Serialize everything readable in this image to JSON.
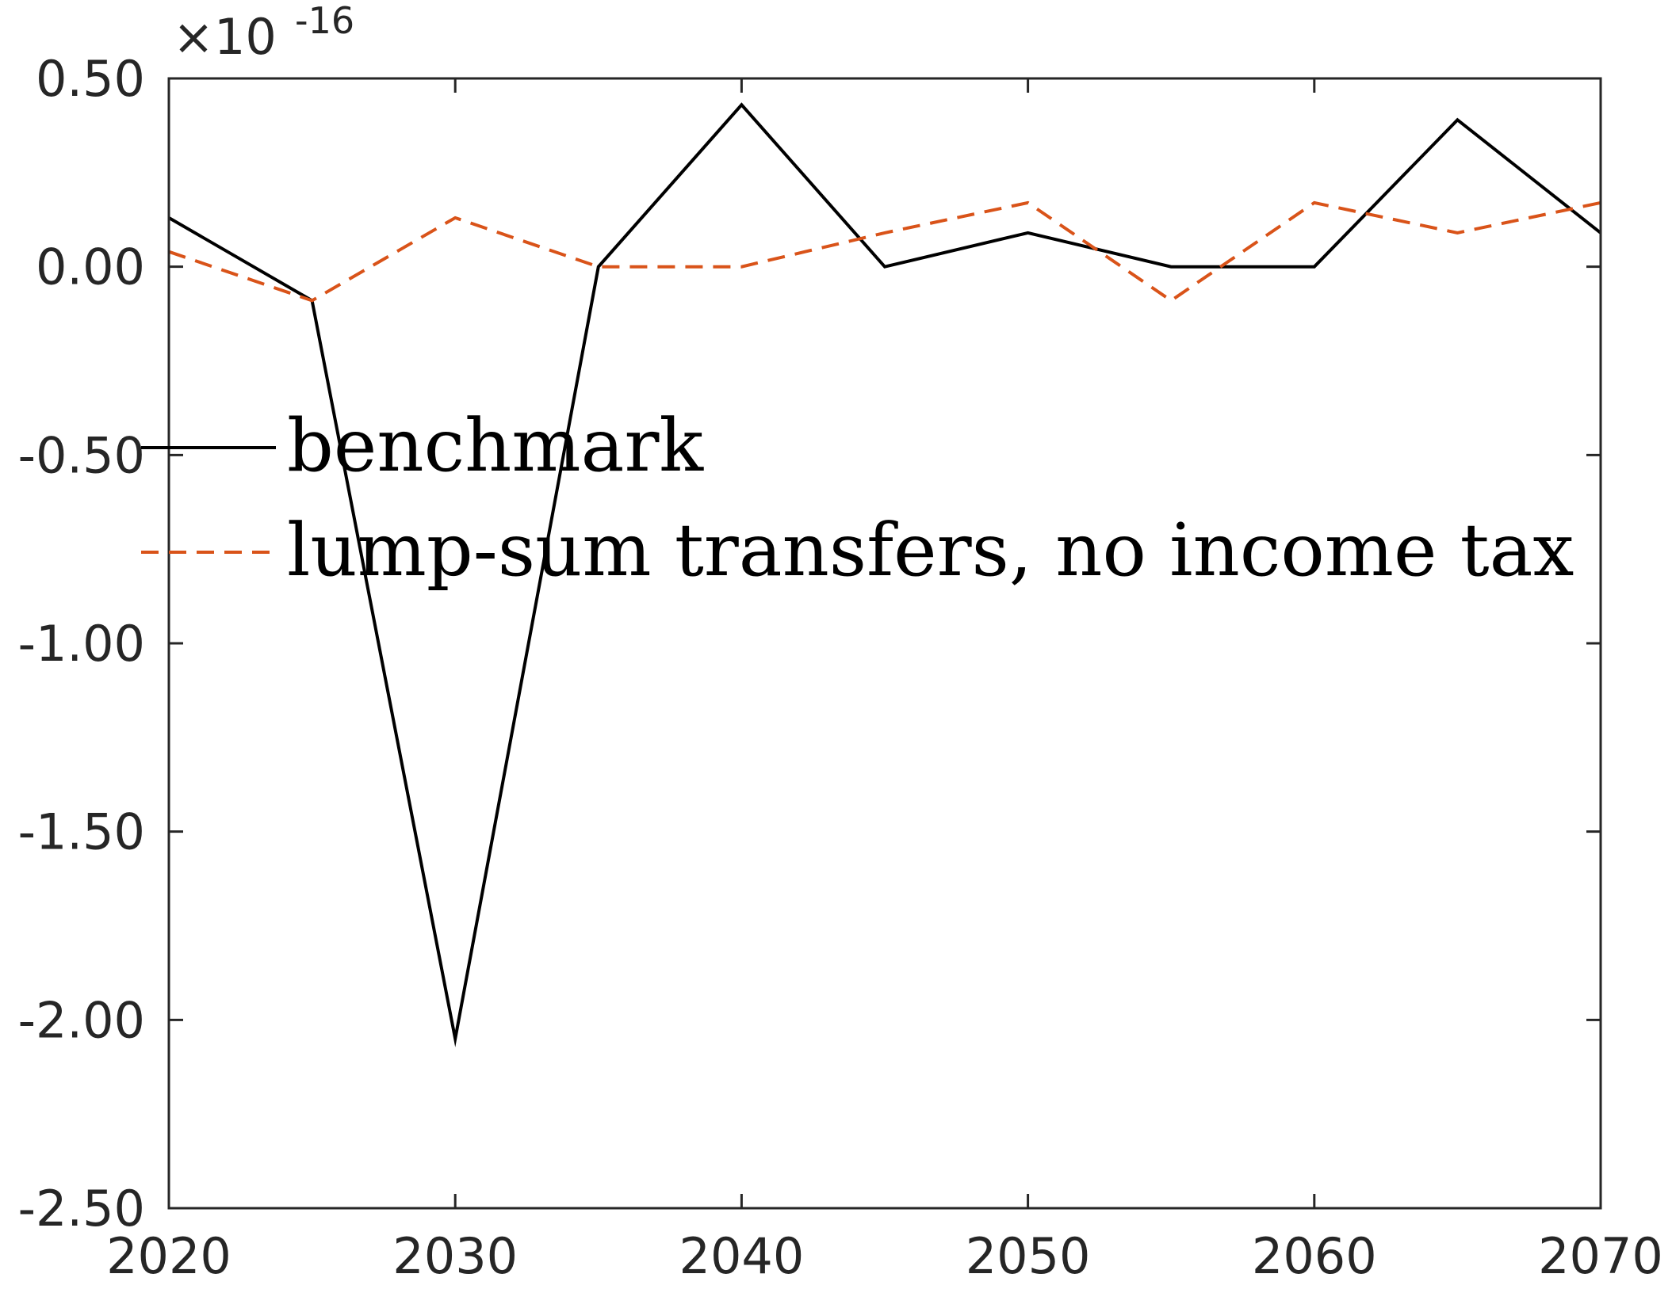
{
  "chart_data": {
    "type": "line",
    "title": "",
    "xlabel": "",
    "ylabel": "",
    "y_exponent_multiplier": "×10",
    "y_exponent_power": "-16",
    "xlim": [
      2020,
      2070
    ],
    "ylim": [
      -2.5,
      0.5
    ],
    "x_ticks": [
      2020,
      2030,
      2040,
      2050,
      2060,
      2070
    ],
    "x_tick_labels": [
      "2020",
      "2030",
      "2040",
      "2050",
      "2060",
      "2070"
    ],
    "y_ticks": [
      0.5,
      0.0,
      -0.5,
      -1.0,
      -1.5,
      -2.0,
      -2.5
    ],
    "y_tick_labels": [
      "0.50",
      "0.00",
      "-0.50",
      "-1.00",
      "-1.50",
      "-2.00",
      "-2.50"
    ],
    "grid": false,
    "legend_position": "middle-left",
    "x": [
      2020,
      2025,
      2030,
      2035,
      2040,
      2045,
      2050,
      2055,
      2060,
      2065,
      2070
    ],
    "series": [
      {
        "name": "benchmark",
        "color": "#000000",
        "style": "solid",
        "values": [
          0.13,
          -0.09,
          -2.05,
          0.0,
          0.43,
          0.0,
          0.09,
          0.0,
          0.0,
          0.39,
          0.09
        ]
      },
      {
        "name": "lump-sum transfers, no income tax",
        "color": "#D95319",
        "style": "dashed",
        "values": [
          0.04,
          -0.09,
          0.13,
          0.0,
          0.0,
          0.09,
          0.17,
          -0.09,
          0.17,
          0.09,
          0.17
        ]
      }
    ]
  }
}
